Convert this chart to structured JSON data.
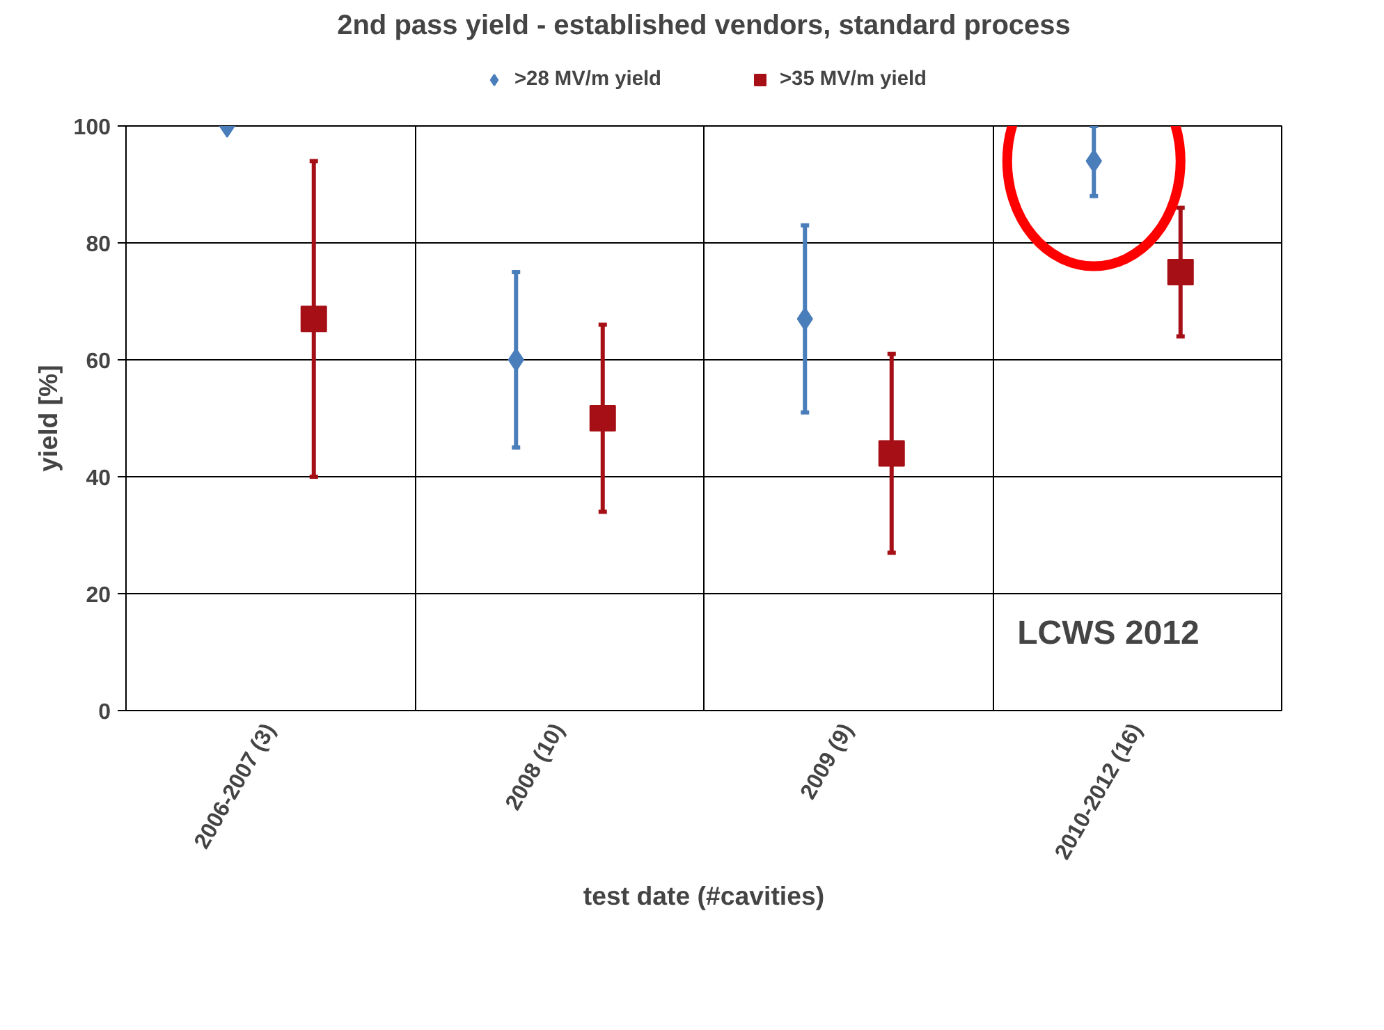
{
  "chart_data": {
    "type": "scatter",
    "title": "2nd pass yield - established vendors, standard process",
    "xlabel": "test date (#cavities)",
    "ylabel": "yield [%]",
    "categories": [
      "2006-2007 (3)",
      "2008 (10)",
      "2009 (9)",
      "2010-2012 (16)"
    ],
    "series": [
      {
        "name": ">28 MV/m yield",
        "color": "#4a7ebb",
        "marker": "diamond",
        "values": [
          100,
          60,
          67,
          94
        ],
        "errors": [
          null,
          [
            45,
            75
          ],
          [
            51,
            83
          ],
          [
            88,
            100
          ]
        ]
      },
      {
        "name": ">35 MV/m yield",
        "color": "#a50f15",
        "marker": "square",
        "values": [
          67,
          50,
          44,
          75
        ],
        "errors": [
          [
            40,
            94
          ],
          [
            34,
            66
          ],
          [
            27,
            61
          ],
          [
            64,
            86
          ]
        ]
      }
    ],
    "ylim": [
      0,
      100
    ],
    "yticks": [
      0,
      20,
      40,
      60,
      80,
      100
    ],
    "grid": true,
    "legend": "top",
    "annotations": [
      "LCWS 2012"
    ]
  }
}
